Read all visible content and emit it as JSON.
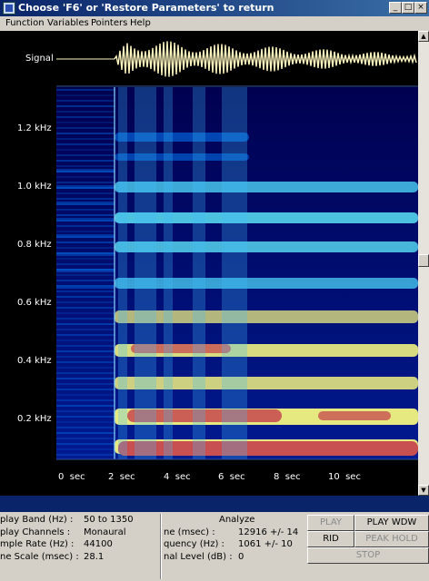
{
  "window": {
    "title": "Choose 'F6' or 'Restore Parameters' to return",
    "minimize_glyph": "_",
    "maximize_glyph": "□",
    "close_glyph": "×"
  },
  "menu": [
    "Function",
    "Variables",
    "Pointers",
    "Help"
  ],
  "plot": {
    "signal_label": "Signal",
    "freq_labels": [
      "1.2 kHz",
      "1.0 kHz",
      "0.8 kHz",
      "0.6 kHz",
      "0.4 kHz",
      "0.2 kHz"
    ],
    "time_ticks": [
      "0",
      "2",
      "4",
      "6",
      "8",
      "10"
    ],
    "time_unit": "sec",
    "colors": {
      "background": "#000000",
      "signal": "#fff7c0",
      "low": "#000060",
      "mid": "#0080ff",
      "high": "#ffff80",
      "peak": "#c85050"
    }
  },
  "info_left": {
    "labels": [
      "play Band (Hz) :",
      "play Channels :",
      "mple Rate (Hz) :",
      "ne Scale (msec) :"
    ],
    "values": [
      "50 to 1350",
      "Monaural",
      "44100",
      "28.1"
    ]
  },
  "info_right": {
    "header": "Analyze",
    "labels": [
      "ne (msec) :",
      "quency (Hz) :",
      "nal Level (dB) :"
    ],
    "values": [
      "12916 +/- 14",
      "1061 +/- 10",
      "0"
    ]
  },
  "buttons": {
    "play": "PLAY",
    "play_wdw": "PLAY WDW",
    "grid": "RID",
    "peak_hold": "PEAK HOLD",
    "stop": "STOP"
  },
  "scrollbar": {
    "up_glyph": "▲",
    "down_glyph": "▼"
  }
}
